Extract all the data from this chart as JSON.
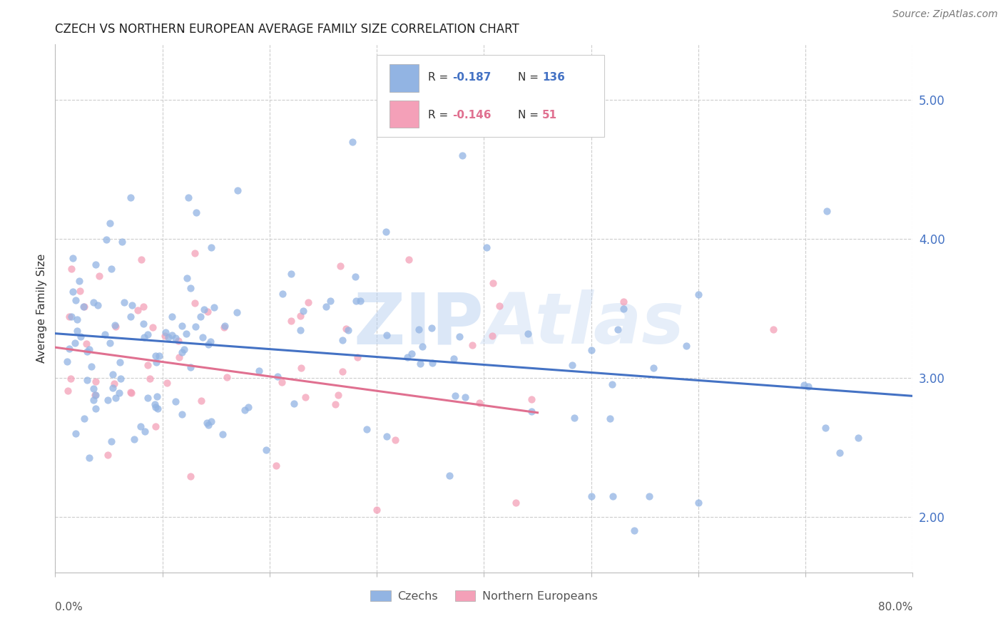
{
  "title": "CZECH VS NORTHERN EUROPEAN AVERAGE FAMILY SIZE CORRELATION CHART",
  "source": "Source: ZipAtlas.com",
  "ylabel": "Average Family Size",
  "yticks": [
    2.0,
    3.0,
    4.0,
    5.0
  ],
  "xlim": [
    0.0,
    0.8
  ],
  "ylim": [
    1.6,
    5.4
  ],
  "legend_r1_val": "-0.187",
  "legend_n1_val": "136",
  "legend_r2_val": "-0.146",
  "legend_n2_val": "51",
  "czech_color": "#92b4e3",
  "czech_line_color": "#4472c4",
  "ne_color": "#f4a0b8",
  "ne_line_color": "#e07090",
  "background_color": "#ffffff",
  "grid_color": "#cccccc",
  "watermark_color": "#b8d0f0",
  "title_fontsize": 12,
  "label_fontsize": 11,
  "tick_fontsize": 12,
  "source_fontsize": 10
}
